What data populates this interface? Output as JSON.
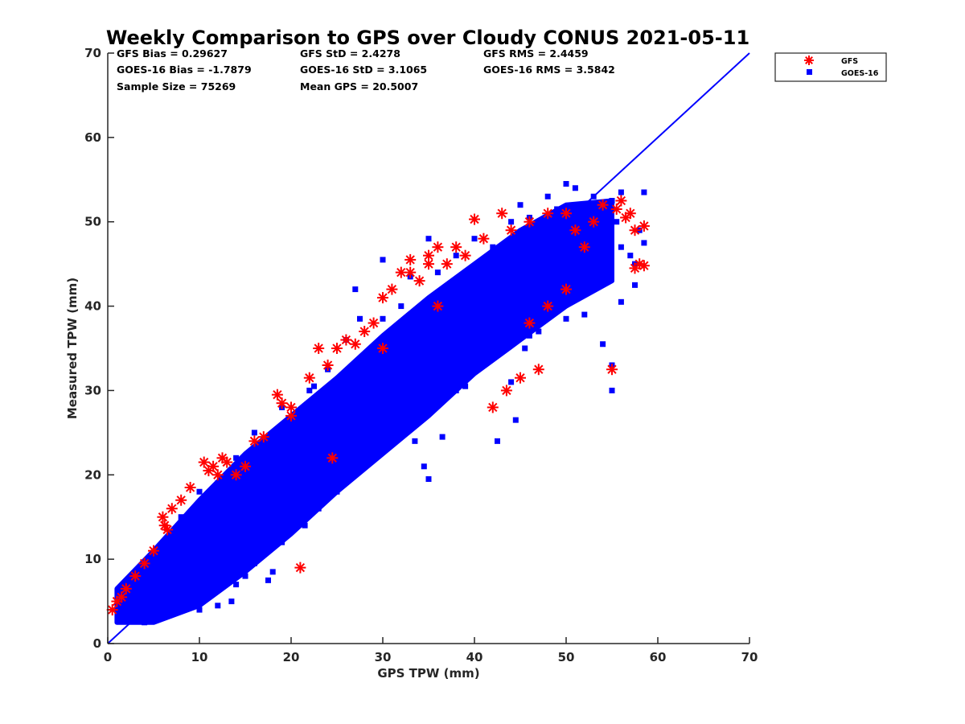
{
  "chart_data": {
    "type": "scatter",
    "title": "Weekly Comparison to GPS over Cloudy CONUS 2021-05-11",
    "xlabel": "GPS TPW (mm)",
    "ylabel": "Measured TPW (mm)",
    "xlim": [
      0,
      70
    ],
    "ylim": [
      0,
      70
    ],
    "xticks": [
      "0",
      "10",
      "20",
      "30",
      "40",
      "50",
      "60",
      "70"
    ],
    "yticks": [
      "0",
      "10",
      "20",
      "30",
      "40",
      "50",
      "60",
      "70"
    ],
    "grid": false,
    "legend_position": "outside-top-right",
    "reference_line": {
      "x": [
        0,
        70
      ],
      "y": [
        0,
        70
      ],
      "color": "#0000ff"
    },
    "stats": [
      [
        "GFS Bias = 0.29627",
        "GFS StD = 2.4278",
        "GFS RMS = 2.4459"
      ],
      [
        "GOES-16 Bias = -1.7879",
        "GOES-16 StD = 3.1065",
        "GOES-16 RMS = 3.5842"
      ],
      [
        "Sample Size = 75269",
        "Mean GPS = 20.5007"
      ]
    ],
    "series": [
      {
        "name": "GFS",
        "marker": "asterisk",
        "color": "#ff0000",
        "points": [
          [
            0.5,
            4.0
          ],
          [
            1.0,
            5.0
          ],
          [
            1.5,
            5.5
          ],
          [
            2.0,
            6.5
          ],
          [
            3.0,
            8.0
          ],
          [
            4.0,
            9.5
          ],
          [
            5.0,
            11.0
          ],
          [
            6.0,
            15.0
          ],
          [
            6.2,
            14.0
          ],
          [
            6.5,
            13.5
          ],
          [
            7.0,
            16.0
          ],
          [
            8.0,
            17.0
          ],
          [
            9.0,
            18.5
          ],
          [
            10.5,
            21.5
          ],
          [
            11.0,
            20.5
          ],
          [
            11.5,
            21.0
          ],
          [
            12.0,
            20.0
          ],
          [
            12.5,
            22.0
          ],
          [
            13.0,
            21.5
          ],
          [
            15.0,
            21.0
          ],
          [
            17.0,
            24.5
          ],
          [
            18.5,
            29.5
          ],
          [
            19.0,
            28.5
          ],
          [
            20.0,
            28.0
          ],
          [
            21.0,
            9.0
          ],
          [
            22.0,
            31.5
          ],
          [
            23.0,
            35.0
          ],
          [
            24.0,
            33.0
          ],
          [
            25.0,
            35.0
          ],
          [
            26.0,
            36.0
          ],
          [
            27.0,
            35.5
          ],
          [
            28.0,
            37.0
          ],
          [
            29.0,
            38.0
          ],
          [
            30.0,
            41.0
          ],
          [
            31.0,
            42.0
          ],
          [
            32.0,
            44.0
          ],
          [
            33.0,
            45.5
          ],
          [
            34.0,
            43.0
          ],
          [
            35.0,
            46.0
          ],
          [
            36.0,
            47.0
          ],
          [
            37.0,
            45.0
          ],
          [
            38.0,
            47.0
          ],
          [
            39.0,
            46.0
          ],
          [
            40.0,
            50.3
          ],
          [
            41.0,
            48.0
          ],
          [
            42.0,
            28.0
          ],
          [
            43.0,
            51.0
          ],
          [
            43.5,
            30.0
          ],
          [
            44.0,
            49.0
          ],
          [
            45.0,
            31.5
          ],
          [
            46.0,
            50.0
          ],
          [
            47.0,
            32.5
          ],
          [
            48.0,
            51.0
          ],
          [
            50.0,
            51.0
          ],
          [
            51.0,
            49.0
          ],
          [
            52.0,
            47.0
          ],
          [
            53.0,
            50.0
          ],
          [
            54.0,
            52.0
          ],
          [
            55.0,
            32.5
          ],
          [
            55.5,
            51.5
          ],
          [
            56.0,
            52.5
          ],
          [
            56.5,
            50.5
          ],
          [
            57.0,
            51.0
          ],
          [
            57.5,
            44.5
          ],
          [
            57.5,
            49.0
          ],
          [
            58.0,
            45.0
          ],
          [
            58.5,
            49.5
          ],
          [
            58.5,
            44.8
          ],
          [
            48.0,
            40.0
          ],
          [
            46.0,
            38.0
          ],
          [
            50.0,
            42.0
          ],
          [
            20.0,
            27.0
          ],
          [
            35.0,
            45.0
          ],
          [
            33.0,
            44.0
          ],
          [
            24.5,
            22.0
          ],
          [
            30.0,
            35.0
          ],
          [
            36.0,
            40.0
          ],
          [
            14.0,
            20.0
          ],
          [
            16.0,
            24.0
          ]
        ]
      },
      {
        "name": "GOES-16",
        "marker": "square",
        "color": "#0000ff",
        "band": {
          "x": [
            1,
            5,
            10,
            15,
            20,
            25,
            30,
            35,
            40,
            45,
            50,
            55
          ],
          "lower": [
            2.5,
            2.5,
            4.5,
            8.5,
            13.0,
            18.0,
            22.5,
            27.0,
            32.0,
            36.0,
            40.0,
            43.0
          ],
          "upper": [
            6.5,
            11.0,
            17.0,
            22.5,
            27.0,
            31.5,
            36.5,
            41.0,
            45.0,
            49.0,
            52.0,
            52.5
          ]
        },
        "points": [
          [
            20.5,
            25.5
          ],
          [
            27.0,
            42.0
          ],
          [
            27.5,
            38.5
          ],
          [
            30.0,
            45.5
          ],
          [
            32.0,
            40.0
          ],
          [
            35.0,
            48.0
          ],
          [
            42.0,
            47.0
          ],
          [
            45.0,
            52.0
          ],
          [
            48.0,
            53.0
          ],
          [
            50.0,
            54.5
          ],
          [
            51.0,
            54.0
          ],
          [
            53.0,
            53.0
          ],
          [
            55.0,
            52.5
          ],
          [
            56.0,
            53.5
          ],
          [
            58.5,
            53.5
          ],
          [
            58.5,
            47.5
          ],
          [
            58.0,
            49.0
          ],
          [
            57.0,
            46.0
          ],
          [
            57.5,
            42.5
          ],
          [
            55.0,
            33.0
          ],
          [
            55.0,
            30.0
          ],
          [
            54.0,
            35.5
          ],
          [
            56.0,
            40.5
          ],
          [
            52.0,
            39.0
          ],
          [
            50.0,
            38.5
          ],
          [
            47.0,
            37.0
          ],
          [
            46.0,
            36.5
          ],
          [
            44.0,
            31.0
          ],
          [
            44.5,
            26.5
          ],
          [
            42.5,
            24.0
          ],
          [
            39.0,
            30.5
          ],
          [
            38.0,
            30.0
          ],
          [
            36.5,
            24.5
          ],
          [
            35.0,
            19.5
          ],
          [
            34.5,
            21.0
          ],
          [
            33.5,
            24.0
          ],
          [
            32.0,
            26.0
          ],
          [
            29.0,
            23.0
          ],
          [
            27.0,
            21.0
          ],
          [
            25.0,
            18.0
          ],
          [
            23.0,
            16.0
          ],
          [
            21.0,
            15.0
          ],
          [
            19.0,
            12.0
          ],
          [
            18.0,
            8.5
          ],
          [
            17.5,
            7.5
          ],
          [
            16.0,
            9.5
          ],
          [
            15.0,
            8.0
          ],
          [
            14.0,
            7.0
          ],
          [
            13.5,
            5.0
          ],
          [
            12.0,
            4.5
          ],
          [
            10.0,
            4.0
          ],
          [
            3.0,
            7.5
          ],
          [
            2.0,
            6.0
          ],
          [
            4.5,
            9.5
          ],
          [
            6.0,
            11.5
          ],
          [
            8.0,
            15.0
          ],
          [
            10.0,
            18.0
          ],
          [
            12.0,
            19.0
          ],
          [
            14.0,
            22.0
          ],
          [
            16.0,
            25.0
          ],
          [
            19.0,
            28.0
          ],
          [
            22.0,
            30.0
          ],
          [
            24.0,
            32.5
          ],
          [
            26.0,
            36.0
          ],
          [
            30.0,
            38.5
          ],
          [
            33.0,
            43.5
          ],
          [
            36.0,
            44.0
          ],
          [
            38.0,
            46.0
          ],
          [
            40.0,
            48.0
          ],
          [
            44.0,
            50.0
          ],
          [
            46.0,
            50.5
          ],
          [
            49.0,
            51.5
          ],
          [
            52.0,
            50.0
          ],
          [
            54.0,
            49.0
          ],
          [
            56.0,
            47.0
          ],
          [
            57.5,
            45.0
          ],
          [
            21.5,
            14.0
          ],
          [
            28.0,
            24.5
          ],
          [
            37.0,
            29.5
          ],
          [
            41.0,
            33.5
          ],
          [
            43.0,
            35.0
          ],
          [
            47.0,
            38.0
          ],
          [
            53.0,
            42.5
          ],
          [
            48.5,
            41.0
          ],
          [
            45.5,
            35.0
          ],
          [
            40.0,
            37.0
          ],
          [
            31.0,
            28.0
          ],
          [
            25.5,
            19.5
          ],
          [
            24.0,
            20.0
          ],
          [
            20.0,
            17.5
          ],
          [
            9.0,
            5.0
          ],
          [
            7.0,
            4.0
          ],
          [
            5.0,
            3.0
          ],
          [
            4.0,
            2.5
          ],
          [
            11.0,
            16.0
          ],
          [
            22.5,
            30.5
          ],
          [
            34.0,
            30.0
          ],
          [
            39.5,
            35.0
          ],
          [
            50.5,
            45.0
          ],
          [
            55.5,
            50.0
          ]
        ]
      }
    ]
  }
}
